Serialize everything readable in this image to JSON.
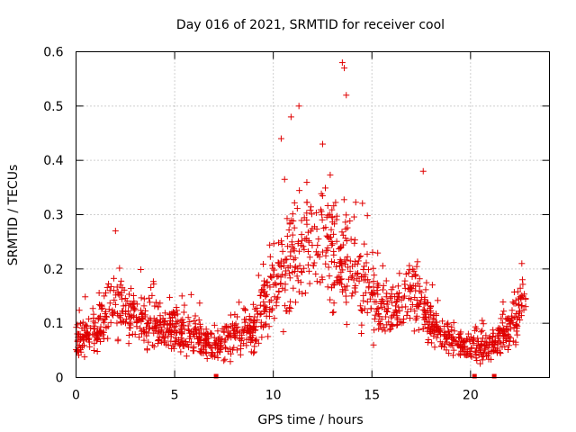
{
  "chart_data": {
    "type": "scatter",
    "title": "Day 016 of 2021, SRMTID for receiver cool",
    "xlabel": "GPS time / hours",
    "ylabel": "SRMTID / TECUs",
    "xlim": [
      0,
      24
    ],
    "ylim": [
      0,
      0.6
    ],
    "xticks": [
      0,
      5,
      10,
      15,
      20
    ],
    "xtick_labels": [
      "0",
      "5",
      "10",
      "15",
      "20"
    ],
    "yticks": [
      0,
      0.1,
      0.2,
      0.3,
      0.4,
      0.5,
      0.6
    ],
    "ytick_labels": [
      "0",
      "0.1",
      "0.2",
      "0.3",
      "0.4",
      "0.5",
      "0.6"
    ],
    "grid": true,
    "marker": "plus",
    "color": "#e00000",
    "profile": {
      "x": [
        0,
        1,
        2,
        3,
        4,
        5,
        6,
        7,
        8,
        9,
        10,
        11,
        12,
        13,
        14,
        15,
        16,
        17,
        18,
        19,
        20,
        21,
        22,
        22.7
      ],
      "y": [
        0.07,
        0.08,
        0.14,
        0.11,
        0.1,
        0.085,
        0.075,
        0.06,
        0.08,
        0.085,
        0.17,
        0.22,
        0.25,
        0.23,
        0.2,
        0.14,
        0.12,
        0.16,
        0.1,
        0.07,
        0.055,
        0.055,
        0.09,
        0.13
      ]
    },
    "peaks": [
      {
        "x": 2.0,
        "y": 0.27
      },
      {
        "x": 10.4,
        "y": 0.44
      },
      {
        "x": 10.9,
        "y": 0.48
      },
      {
        "x": 11.3,
        "y": 0.5
      },
      {
        "x": 12.5,
        "y": 0.43
      },
      {
        "x": 13.5,
        "y": 0.58
      },
      {
        "x": 13.6,
        "y": 0.57
      },
      {
        "x": 13.7,
        "y": 0.52
      },
      {
        "x": 17.6,
        "y": 0.38
      },
      {
        "x": 22.6,
        "y": 0.21
      }
    ],
    "near_zero_markers": [
      7.1,
      20.2,
      21.2
    ],
    "x_extent": [
      0,
      22.8
    ]
  }
}
